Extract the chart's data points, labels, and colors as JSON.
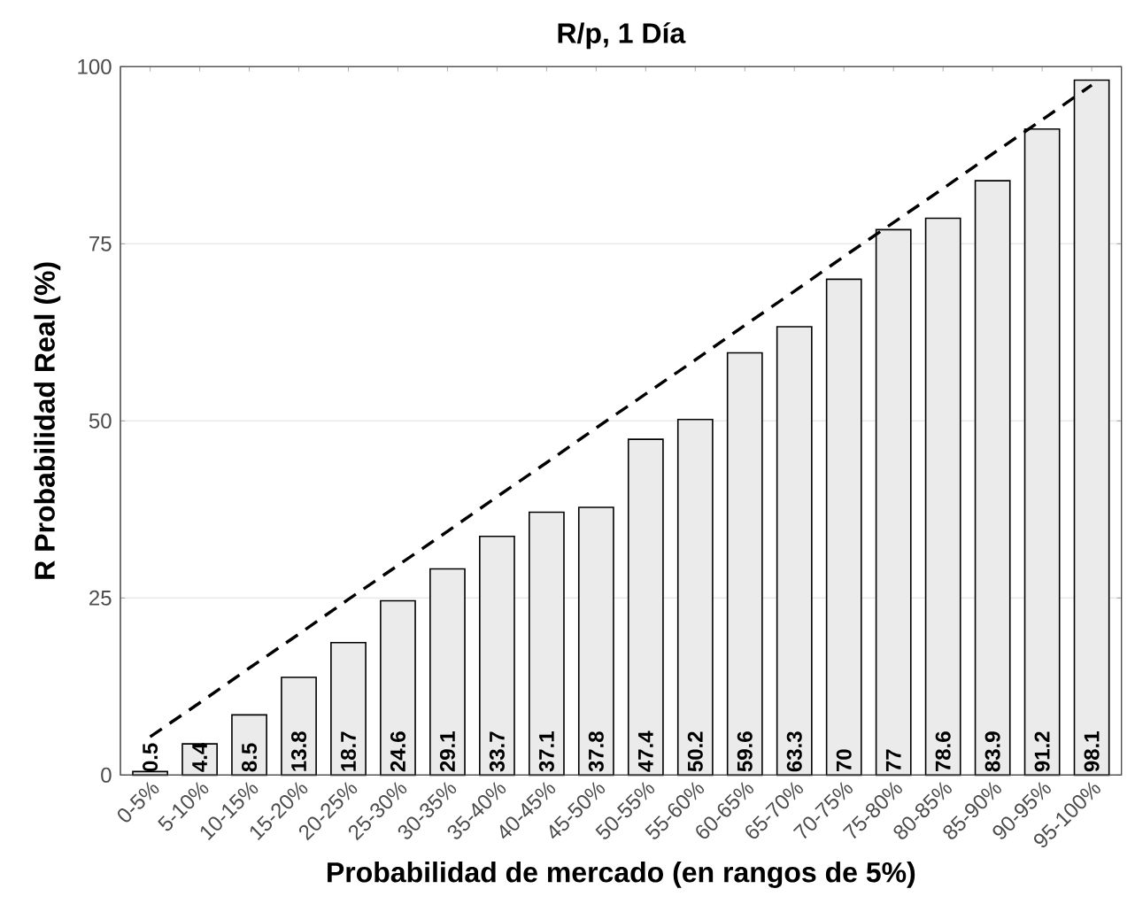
{
  "chart_data": {
    "type": "bar",
    "title": "R/p, 1 Día",
    "xlabel": "Probabilidad de mercado (en rangos de 5%)",
    "ylabel": "R Probabilidad Real (%)",
    "categories": [
      "0-5%",
      "5-10%",
      "10-15%",
      "15-20%",
      "20-25%",
      "25-30%",
      "30-35%",
      "35-40%",
      "40-45%",
      "45-50%",
      "50-55%",
      "55-60%",
      "60-65%",
      "65-70%",
      "70-75%",
      "75-80%",
      "80-85%",
      "85-90%",
      "90-95%",
      "95-100%"
    ],
    "series": [
      {
        "type": "bar",
        "color": "#ebebeb",
        "values": [
          0.5,
          4.4,
          8.5,
          13.8,
          18.7,
          24.6,
          29.1,
          33.7,
          37.1,
          37.8,
          47.4,
          50.2,
          59.6,
          63.3,
          70,
          77,
          78.6,
          83.9,
          91.2,
          98.1
        ],
        "value_labels": [
          "0.5",
          "4.4",
          "8.5",
          "13.8",
          "18.7",
          "24.6",
          "29.1",
          "33.7",
          "37.1",
          "37.8",
          "47.4",
          "50.2",
          "59.6",
          "63.3",
          "70",
          "77",
          "78.6",
          "83.9",
          "91.2",
          "98.1"
        ]
      },
      {
        "type": "line",
        "color": "#000000",
        "line_style": "dashed",
        "values": [
          5.4,
          10.2,
          15.1,
          19.9,
          24.8,
          29.6,
          34.4,
          39.3,
          44.1,
          49.0,
          53.8,
          58.6,
          63.5,
          68.3,
          73.2,
          78.0,
          82.8,
          87.7,
          92.5,
          97.4
        ]
      }
    ],
    "ylim": [
      0,
      100
    ],
    "yticks": [
      0,
      25,
      50,
      75,
      100
    ],
    "grid": "y"
  }
}
